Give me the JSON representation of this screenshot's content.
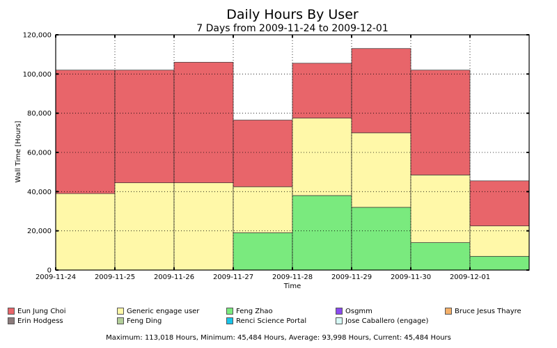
{
  "chart_data": {
    "type": "bar",
    "stacked": true,
    "title": "Daily Hours By User",
    "subtitle": "7 Days from 2009-11-24 to 2009-12-01",
    "xlabel": "Time",
    "ylabel": "Wall Time [Hours]",
    "ylim": [
      0,
      120000
    ],
    "yticks": [
      "0",
      "20,000",
      "40,000",
      "60,000",
      "80,000",
      "100,000",
      "120,000"
    ],
    "ytick_values": [
      0,
      20000,
      40000,
      60000,
      80000,
      100000,
      120000
    ],
    "categories": [
      "2009-11-24",
      "2009-11-25",
      "2009-11-26",
      "2009-11-27",
      "2009-11-28",
      "2009-11-29",
      "2009-11-30",
      "2009-12-01"
    ],
    "grid": true,
    "series": [
      {
        "name": "Feng Zhao",
        "color": "#7aea7e",
        "values": [
          0,
          0,
          0,
          19000,
          38000,
          32000,
          14000,
          7000
        ]
      },
      {
        "name": "Generic engage user",
        "color": "#fff8a8",
        "values": [
          39000,
          44500,
          44500,
          23500,
          39500,
          38000,
          34500,
          15500
        ]
      },
      {
        "name": "Eun Jung Choi",
        "color": "#e8656a",
        "values": [
          63000,
          57500,
          61500,
          34000,
          28000,
          43000,
          53500,
          23000
        ]
      }
    ],
    "legend": [
      {
        "name": "Eun Jung Choi",
        "color": "#e8656a"
      },
      {
        "name": "Generic engage user",
        "color": "#fff8a8"
      },
      {
        "name": "Feng Zhao",
        "color": "#7aea7e"
      },
      {
        "name": "Osgmm",
        "color": "#8a4af0"
      },
      {
        "name": "Bruce Jesus Thayre",
        "color": "#f4b06a"
      },
      {
        "name": "Erin Hodgess",
        "color": "#8c7b7b"
      },
      {
        "name": "Feng Ding",
        "color": "#b3cf9a"
      },
      {
        "name": "Renci Science Portal",
        "color": "#19c4ea"
      },
      {
        "name": "Jose Caballero (engage)",
        "color": "#d6f9f6"
      }
    ],
    "legend_placement": "bottom",
    "summary": "Maximum: 113,018 Hours, Minimum: 45,484 Hours, Average: 93,998 Hours, Current: 45,484 Hours"
  }
}
